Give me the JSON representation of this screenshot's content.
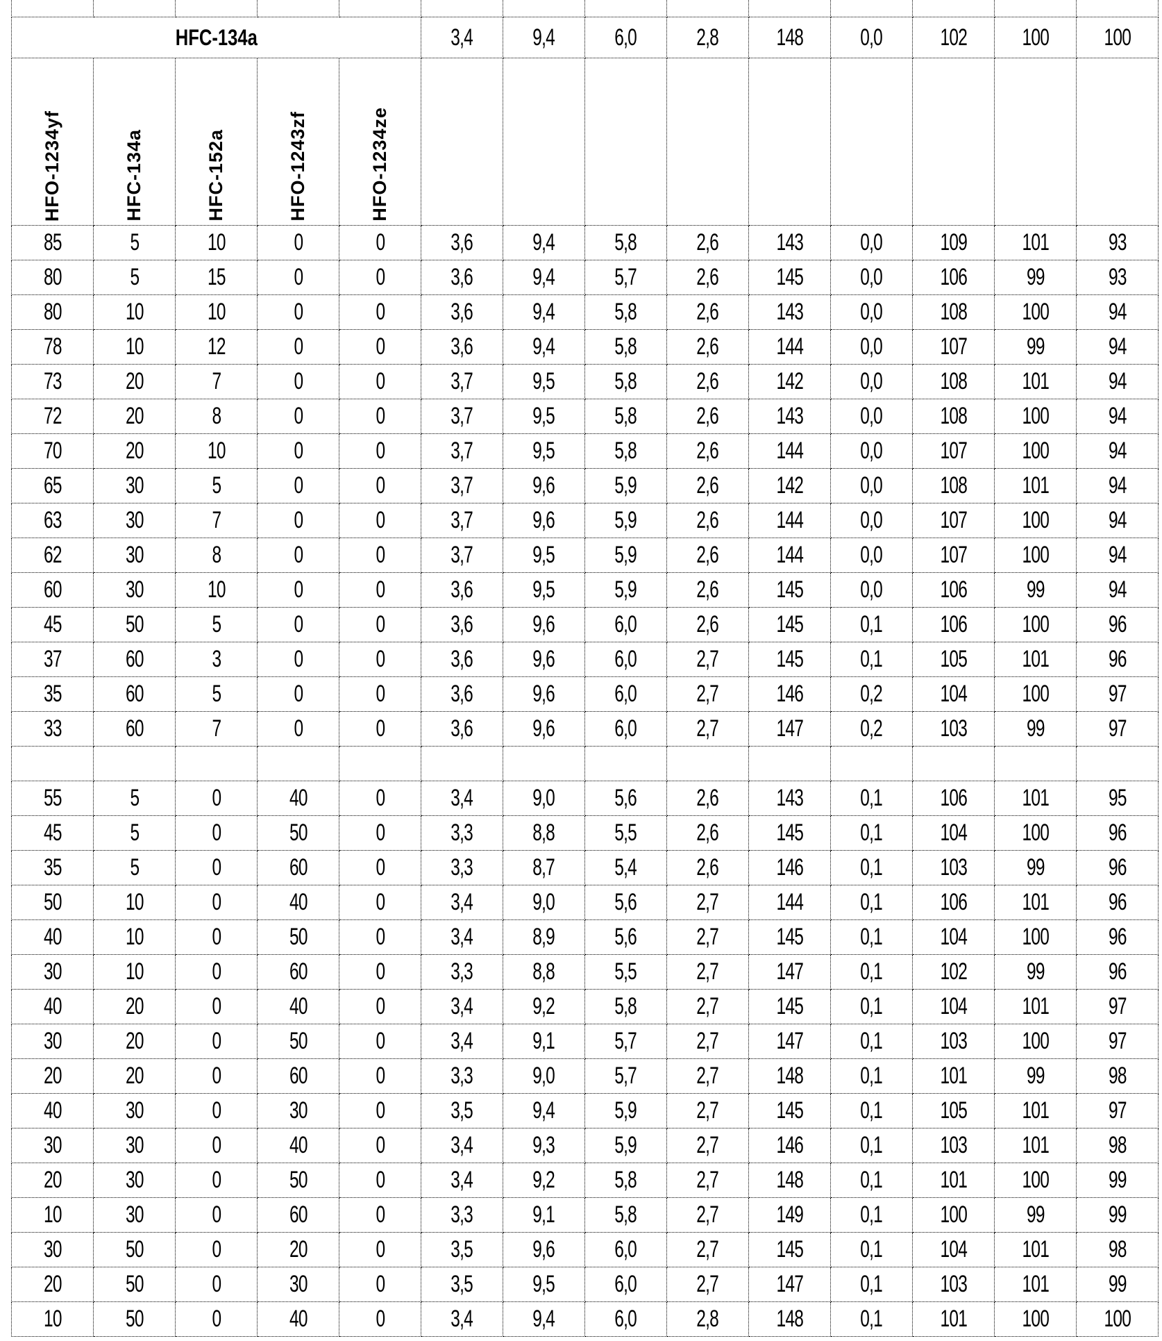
{
  "reference": {
    "name": "HFC-134a",
    "values": [
      "3,4",
      "9,4",
      "6,0",
      "2,8",
      "148",
      "0,0",
      "102",
      "100",
      "100"
    ]
  },
  "composition_headers": [
    "HFO-1234yf",
    "HFC-134a",
    "HFC-152a",
    "HFO-1243zf",
    "HFO-1234ze"
  ],
  "rows_group1": [
    [
      "85",
      "5",
      "10",
      "0",
      "0",
      "3,6",
      "9,4",
      "5,8",
      "2,6",
      "143",
      "0,0",
      "109",
      "101",
      "93"
    ],
    [
      "80",
      "5",
      "15",
      "0",
      "0",
      "3,6",
      "9,4",
      "5,7",
      "2,6",
      "145",
      "0,0",
      "106",
      "99",
      "93"
    ],
    [
      "80",
      "10",
      "10",
      "0",
      "0",
      "3,6",
      "9,4",
      "5,8",
      "2,6",
      "143",
      "0,0",
      "108",
      "100",
      "94"
    ],
    [
      "78",
      "10",
      "12",
      "0",
      "0",
      "3,6",
      "9,4",
      "5,8",
      "2,6",
      "144",
      "0,0",
      "107",
      "99",
      "94"
    ],
    [
      "73",
      "20",
      "7",
      "0",
      "0",
      "3,7",
      "9,5",
      "5,8",
      "2,6",
      "142",
      "0,0",
      "108",
      "101",
      "94"
    ],
    [
      "72",
      "20",
      "8",
      "0",
      "0",
      "3,7",
      "9,5",
      "5,8",
      "2,6",
      "143",
      "0,0",
      "108",
      "100",
      "94"
    ],
    [
      "70",
      "20",
      "10",
      "0",
      "0",
      "3,7",
      "9,5",
      "5,8",
      "2,6",
      "144",
      "0,0",
      "107",
      "100",
      "94"
    ],
    [
      "65",
      "30",
      "5",
      "0",
      "0",
      "3,7",
      "9,6",
      "5,9",
      "2,6",
      "142",
      "0,0",
      "108",
      "101",
      "94"
    ],
    [
      "63",
      "30",
      "7",
      "0",
      "0",
      "3,7",
      "9,6",
      "5,9",
      "2,6",
      "144",
      "0,0",
      "107",
      "100",
      "94"
    ],
    [
      "62",
      "30",
      "8",
      "0",
      "0",
      "3,7",
      "9,5",
      "5,9",
      "2,6",
      "144",
      "0,0",
      "107",
      "100",
      "94"
    ],
    [
      "60",
      "30",
      "10",
      "0",
      "0",
      "3,6",
      "9,5",
      "5,9",
      "2,6",
      "145",
      "0,0",
      "106",
      "99",
      "94"
    ],
    [
      "45",
      "50",
      "5",
      "0",
      "0",
      "3,6",
      "9,6",
      "6,0",
      "2,6",
      "145",
      "0,1",
      "106",
      "100",
      "96"
    ],
    [
      "37",
      "60",
      "3",
      "0",
      "0",
      "3,6",
      "9,6",
      "6,0",
      "2,7",
      "145",
      "0,1",
      "105",
      "101",
      "96"
    ],
    [
      "35",
      "60",
      "5",
      "0",
      "0",
      "3,6",
      "9,6",
      "6,0",
      "2,7",
      "146",
      "0,2",
      "104",
      "100",
      "97"
    ],
    [
      "33",
      "60",
      "7",
      "0",
      "0",
      "3,6",
      "9,6",
      "6,0",
      "2,7",
      "147",
      "0,2",
      "103",
      "99",
      "97"
    ]
  ],
  "rows_group2": [
    [
      "55",
      "5",
      "0",
      "40",
      "0",
      "3,4",
      "9,0",
      "5,6",
      "2,6",
      "143",
      "0,1",
      "106",
      "101",
      "95"
    ],
    [
      "45",
      "5",
      "0",
      "50",
      "0",
      "3,3",
      "8,8",
      "5,5",
      "2,6",
      "145",
      "0,1",
      "104",
      "100",
      "96"
    ],
    [
      "35",
      "5",
      "0",
      "60",
      "0",
      "3,3",
      "8,7",
      "5,4",
      "2,6",
      "146",
      "0,1",
      "103",
      "99",
      "96"
    ],
    [
      "50",
      "10",
      "0",
      "40",
      "0",
      "3,4",
      "9,0",
      "5,6",
      "2,7",
      "144",
      "0,1",
      "106",
      "101",
      "96"
    ],
    [
      "40",
      "10",
      "0",
      "50",
      "0",
      "3,4",
      "8,9",
      "5,6",
      "2,7",
      "145",
      "0,1",
      "104",
      "100",
      "96"
    ],
    [
      "30",
      "10",
      "0",
      "60",
      "0",
      "3,3",
      "8,8",
      "5,5",
      "2,7",
      "147",
      "0,1",
      "102",
      "99",
      "96"
    ],
    [
      "40",
      "20",
      "0",
      "40",
      "0",
      "3,4",
      "9,2",
      "5,8",
      "2,7",
      "145",
      "0,1",
      "104",
      "101",
      "97"
    ],
    [
      "30",
      "20",
      "0",
      "50",
      "0",
      "3,4",
      "9,1",
      "5,7",
      "2,7",
      "147",
      "0,1",
      "103",
      "100",
      "97"
    ],
    [
      "20",
      "20",
      "0",
      "60",
      "0",
      "3,3",
      "9,0",
      "5,7",
      "2,7",
      "148",
      "0,1",
      "101",
      "99",
      "98"
    ],
    [
      "40",
      "30",
      "0",
      "30",
      "0",
      "3,5",
      "9,4",
      "5,9",
      "2,7",
      "145",
      "0,1",
      "105",
      "101",
      "97"
    ],
    [
      "30",
      "30",
      "0",
      "40",
      "0",
      "3,4",
      "9,3",
      "5,9",
      "2,7",
      "146",
      "0,1",
      "103",
      "101",
      "98"
    ],
    [
      "20",
      "30",
      "0",
      "50",
      "0",
      "3,4",
      "9,2",
      "5,8",
      "2,7",
      "148",
      "0,1",
      "101",
      "100",
      "99"
    ],
    [
      "10",
      "30",
      "0",
      "60",
      "0",
      "3,3",
      "9,1",
      "5,8",
      "2,7",
      "149",
      "0,1",
      "100",
      "99",
      "99"
    ],
    [
      "30",
      "50",
      "0",
      "20",
      "0",
      "3,5",
      "9,6",
      "6,0",
      "2,7",
      "145",
      "0,1",
      "104",
      "101",
      "98"
    ],
    [
      "20",
      "50",
      "0",
      "30",
      "0",
      "3,5",
      "9,5",
      "6,0",
      "2,7",
      "147",
      "0,1",
      "103",
      "101",
      "99"
    ],
    [
      "10",
      "50",
      "0",
      "40",
      "0",
      "3,4",
      "9,4",
      "6,0",
      "2,8",
      "148",
      "0,1",
      "101",
      "100",
      "100"
    ]
  ]
}
